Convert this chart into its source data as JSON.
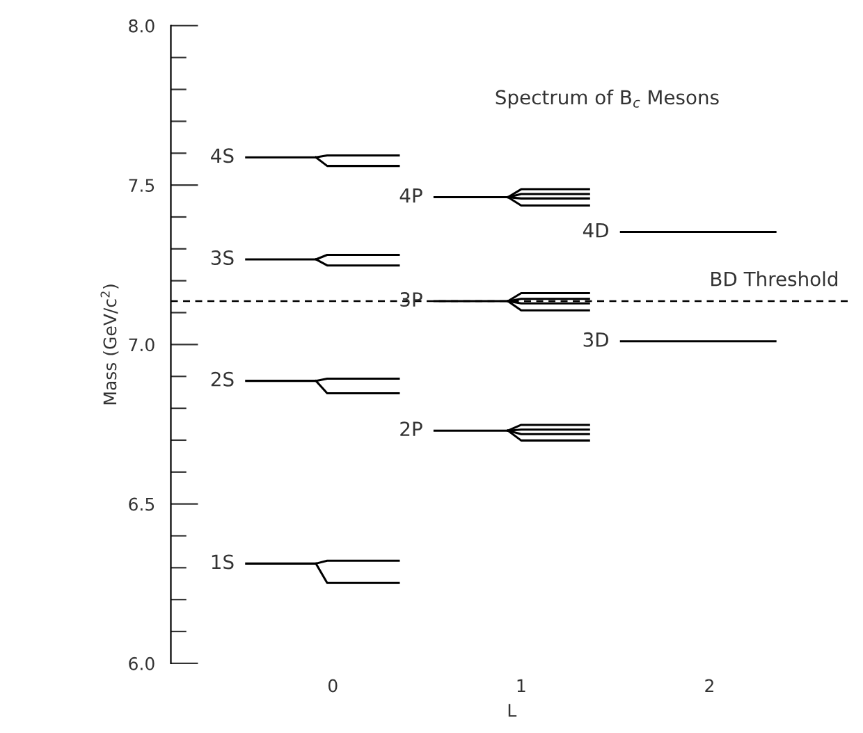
{
  "chart_data": {
    "type": "line",
    "title": "Spectrum of B$_{c}$ Mesons",
    "xlabel": "L",
    "ylabel": "Mass (GeV/c$^{2}$)",
    "xlim": [
      -0.86,
      2.76
    ],
    "xticks": [
      0,
      1,
      2
    ],
    "ylim": [
      6.0,
      8.0
    ],
    "yticks": [
      {
        "value": 6.0,
        "label": "6.0"
      },
      {
        "value": 6.1,
        "label": null
      },
      {
        "value": 6.2,
        "label": null
      },
      {
        "value": 6.3,
        "label": null
      },
      {
        "value": 6.4,
        "label": null
      },
      6.5,
      {
        "value": 6.6,
        "label": null
      },
      {
        "value": 6.7,
        "label": null
      },
      {
        "value": 6.8,
        "label": null
      },
      {
        "value": 6.9,
        "label": null
      },
      {
        "value": 7.0,
        "label": "7.0"
      },
      {
        "value": 7.1,
        "label": null
      },
      {
        "value": 7.2,
        "label": null
      },
      {
        "value": 7.3,
        "label": null
      },
      {
        "value": 7.4,
        "label": null
      },
      7.5,
      {
        "value": 7.6,
        "label": null
      },
      {
        "value": 7.7,
        "label": null
      },
      {
        "value": 7.8,
        "label": null
      },
      {
        "value": 7.9,
        "label": null
      },
      {
        "value": 8.0,
        "label": "8.0"
      }
    ],
    "grid": false,
    "marker": "none",
    "line_style": "solid",
    "series": [
      {
        "color": "#000000",
        "x": [
          -0.46,
          -0.09,
          -0.03,
          0.35
        ],
        "values": [
          7.587,
          7.587,
          7.593,
          7.593
        ]
      },
      {
        "color": "#000000",
        "x": [
          -0.09,
          -0.03,
          0.35
        ],
        "values": [
          7.587,
          7.56,
          7.56
        ]
      },
      {
        "color": "#000000",
        "x": [
          -0.46,
          -0.09,
          -0.03,
          0.35
        ],
        "values": [
          7.267,
          7.267,
          7.281,
          7.281
        ]
      },
      {
        "color": "#000000",
        "x": [
          -0.09,
          -0.03,
          0.35
        ],
        "values": [
          7.267,
          7.248,
          7.248
        ]
      },
      {
        "color": "#000000",
        "x": [
          -0.46,
          -0.09,
          -0.03,
          0.35
        ],
        "values": [
          6.886,
          6.886,
          6.893,
          6.893
        ]
      },
      {
        "color": "#000000",
        "x": [
          -0.09,
          -0.03,
          0.35
        ],
        "values": [
          6.886,
          6.847,
          6.847
        ]
      },
      {
        "color": "#000000",
        "x": [
          -0.46,
          -0.09,
          -0.03,
          0.35
        ],
        "values": [
          6.313,
          6.313,
          6.322,
          6.322
        ]
      },
      {
        "color": "#000000",
        "x": [
          -0.09,
          -0.03,
          0.35
        ],
        "values": [
          6.313,
          6.252,
          6.252
        ]
      },
      {
        "color": "#000000",
        "x": [
          0.54,
          0.93,
          1.0,
          1.36
        ],
        "values": [
          7.462,
          7.462,
          7.487,
          7.487
        ]
      },
      {
        "color": "#000000",
        "x": [
          0.93,
          1.0,
          1.36
        ],
        "values": [
          7.462,
          7.472,
          7.472
        ]
      },
      {
        "color": "#000000",
        "x": [
          0.93,
          1.0,
          1.36
        ],
        "values": [
          7.462,
          7.458,
          7.458
        ]
      },
      {
        "color": "#000000",
        "x": [
          0.93,
          1.0,
          1.36
        ],
        "values": [
          7.462,
          7.436,
          7.436
        ]
      },
      {
        "color": "#000000",
        "x": [
          0.54,
          0.93,
          1.0,
          1.36
        ],
        "values": [
          7.136,
          7.136,
          7.161,
          7.161
        ]
      },
      {
        "color": "#000000",
        "x": [
          0.93,
          1.0,
          1.36
        ],
        "values": [
          7.136,
          7.143,
          7.143
        ]
      },
      {
        "color": "#000000",
        "x": [
          0.93,
          1.0,
          1.36
        ],
        "values": [
          7.136,
          7.129,
          7.129
        ]
      },
      {
        "color": "#000000",
        "x": [
          0.93,
          1.0,
          1.36
        ],
        "values": [
          7.136,
          7.107,
          7.107
        ]
      },
      {
        "color": "#000000",
        "x": [
          0.54,
          0.93,
          1.0,
          1.36
        ],
        "values": [
          6.73,
          6.73,
          6.748,
          6.748
        ]
      },
      {
        "color": "#000000",
        "x": [
          0.93,
          1.0,
          1.36
        ],
        "values": [
          6.73,
          6.733,
          6.733
        ]
      },
      {
        "color": "#000000",
        "x": [
          0.93,
          1.0,
          1.36
        ],
        "values": [
          6.73,
          6.719,
          6.719
        ]
      },
      {
        "color": "#000000",
        "x": [
          0.93,
          1.0,
          1.36
        ],
        "values": [
          6.73,
          6.699,
          6.699
        ]
      },
      {
        "color": "#000000",
        "x": [
          1.53,
          2.35
        ],
        "values": [
          7.353,
          7.353
        ]
      },
      {
        "color": "#000000",
        "x": [
          1.53,
          2.35
        ],
        "values": [
          7.01,
          7.01
        ]
      }
    ],
    "ref_lines": [
      {
        "axis": "y",
        "value": 7.136,
        "label": "BD Threshold",
        "color": "#000000",
        "line_style": "dashed"
      }
    ],
    "annotations": [
      {
        "text": "4S",
        "x": -0.46,
        "y": 7.587
      },
      {
        "text": "3S",
        "x": -0.46,
        "y": 7.267
      },
      {
        "text": "2S",
        "x": -0.46,
        "y": 6.886
      },
      {
        "text": "1S",
        "x": -0.46,
        "y": 6.313
      },
      {
        "text": "4P",
        "x": 0.54,
        "y": 7.462
      },
      {
        "text": "3P",
        "x": 0.54,
        "y": 7.136
      },
      {
        "text": "2P",
        "x": 0.54,
        "y": 6.73
      },
      {
        "text": "4D",
        "x": 1.53,
        "y": 7.353
      },
      {
        "text": "3D",
        "x": 1.53,
        "y": 7.01
      }
    ]
  }
}
